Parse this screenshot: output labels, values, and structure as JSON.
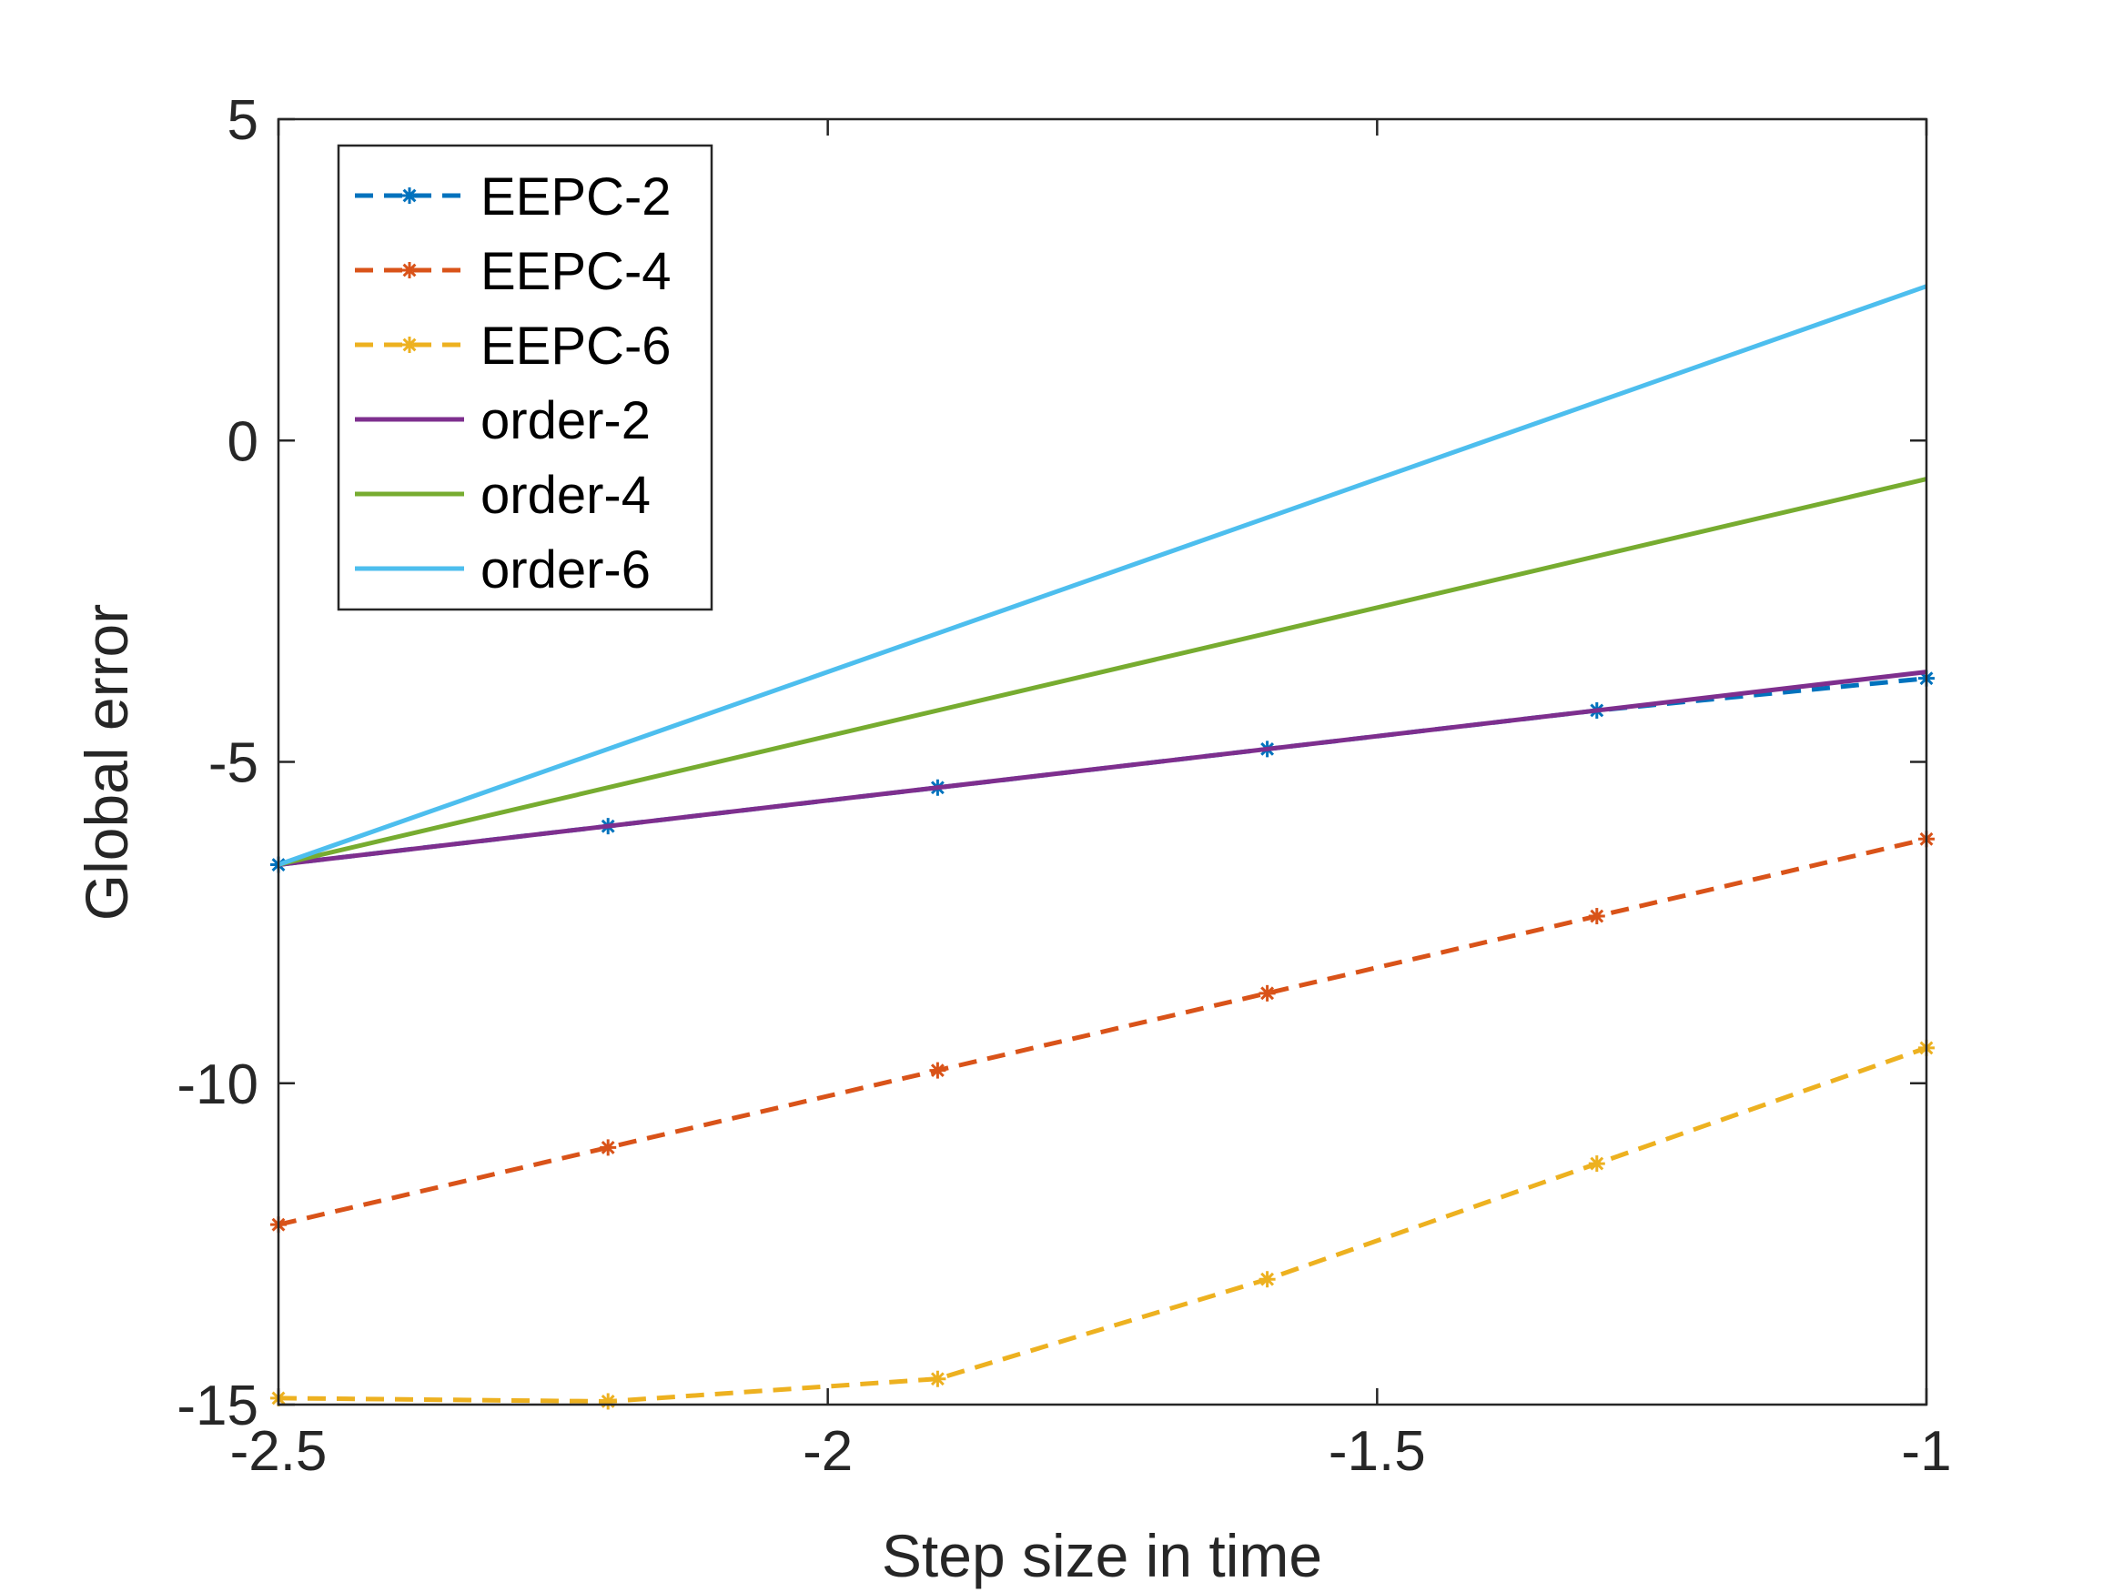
{
  "chart_data": {
    "type": "line",
    "title": "",
    "xlabel": "Step size in time",
    "ylabel": "Global error",
    "xlim": [
      -2.5,
      -1
    ],
    "ylim": [
      -15,
      5
    ],
    "xticks": [
      -2.5,
      -2,
      -1.5,
      -1
    ],
    "xtick_labels": [
      "-2.5",
      "-2",
      "-1.5",
      "-1"
    ],
    "yticks": [
      -15,
      -10,
      -5,
      0,
      5
    ],
    "ytick_labels": [
      "-15",
      "-10",
      "-5",
      "0",
      "5"
    ],
    "grid": false,
    "box": true,
    "legend_position": "top-left",
    "series": [
      {
        "name": "EEPC-2",
        "style": "dashed",
        "marker": "asterisk",
        "color": "#0072BD",
        "x": [
          -2.5,
          -2.2,
          -1.9,
          -1.6,
          -1.3,
          -1.0
        ],
        "y": [
          -6.6,
          -6.0,
          -5.4,
          -4.8,
          -4.2,
          -3.7
        ]
      },
      {
        "name": "EEPC-4",
        "style": "dashed",
        "marker": "asterisk",
        "color": "#D95319",
        "x": [
          -2.5,
          -2.2,
          -1.9,
          -1.6,
          -1.3,
          -1.0
        ],
        "y": [
          -12.2,
          -11.0,
          -9.8,
          -8.6,
          -7.4,
          -6.2
        ]
      },
      {
        "name": "EEPC-6",
        "style": "dashed",
        "marker": "asterisk",
        "color": "#EDB120",
        "x": [
          -2.5,
          -2.2,
          -1.9,
          -1.6,
          -1.3,
          -1.0
        ],
        "y": [
          -14.9,
          -14.95,
          -14.6,
          -13.05,
          -11.25,
          -9.45
        ]
      },
      {
        "name": "order-2",
        "style": "solid",
        "marker": "none",
        "color": "#7E2F8E",
        "x": [
          -2.5,
          -1.0
        ],
        "y": [
          -6.6,
          -3.6
        ]
      },
      {
        "name": "order-4",
        "style": "solid",
        "marker": "none",
        "color": "#77AC30",
        "x": [
          -2.5,
          -1.0
        ],
        "y": [
          -6.6,
          -0.6
        ]
      },
      {
        "name": "order-6",
        "style": "solid",
        "marker": "none",
        "color": "#4DBEEE",
        "x": [
          -2.5,
          -1.0
        ],
        "y": [
          -6.6,
          2.4
        ]
      }
    ]
  }
}
